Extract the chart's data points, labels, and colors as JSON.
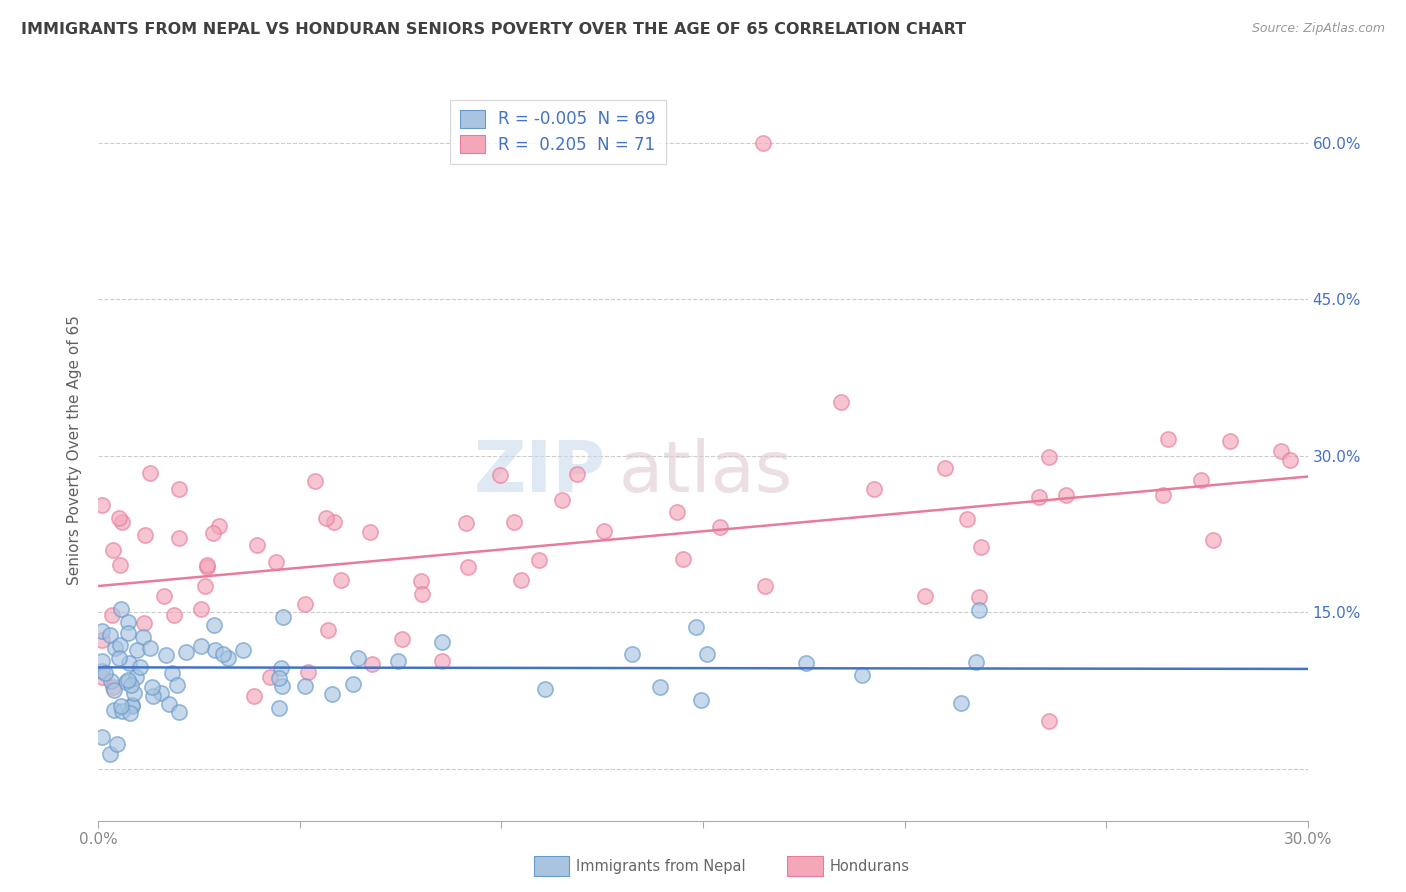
{
  "title": "IMMIGRANTS FROM NEPAL VS HONDURAN SENIORS POVERTY OVER THE AGE OF 65 CORRELATION CHART",
  "source": "Source: ZipAtlas.com",
  "ylabel": "Seniors Poverty Over the Age of 65",
  "xlim": [
    0.0,
    0.3
  ],
  "ylim": [
    -0.05,
    0.66
  ],
  "ytick_positions": [
    0.0,
    0.15,
    0.3,
    0.45,
    0.6
  ],
  "ytick_labels_right": [
    "",
    "15.0%",
    "30.0%",
    "45.0%",
    "60.0%"
  ],
  "xtick_positions": [
    0.0,
    0.05,
    0.1,
    0.15,
    0.2,
    0.25,
    0.3
  ],
  "xtick_labels": [
    "0.0%",
    "",
    "",
    "",
    "",
    "",
    "30.0%"
  ],
  "nepal_face_color": "#a8c4e0",
  "nepal_edge_color": "#6699cc",
  "honduran_face_color": "#f4a7b9",
  "honduran_edge_color": "#e87b9a",
  "nepal_line_color": "#4472c4",
  "honduran_line_color": "#e87b9a",
  "nepal_R": "-0.005",
  "nepal_N": "69",
  "honduran_R": "0.205",
  "honduran_N": "71",
  "legend_label_nepal": "Immigrants from Nepal",
  "legend_label_honduran": "Hondurans",
  "background_color": "#ffffff",
  "grid_color": "#cccccc",
  "title_color": "#404040",
  "axis_label_color": "#606060",
  "tick_label_color_right": "#4472c4",
  "watermark_zip_color": "#c8d8e8",
  "watermark_atlas_color": "#d8c0c8"
}
